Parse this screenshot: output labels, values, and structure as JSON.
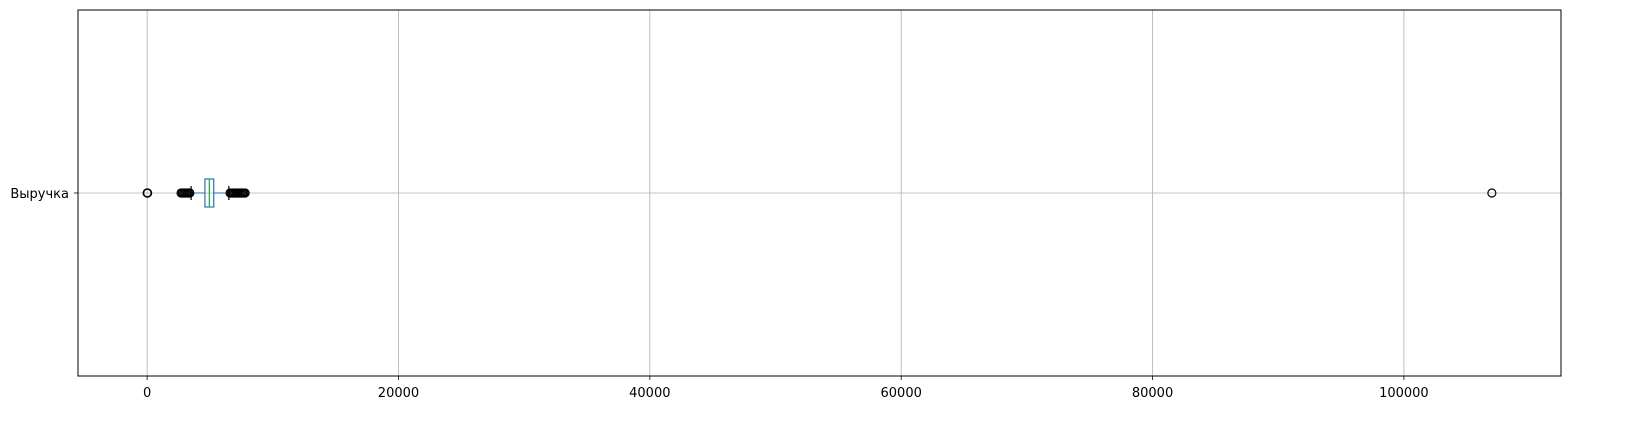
{
  "chart_data": {
    "type": "boxplot",
    "orientation": "horizontal",
    "title": "",
    "xlabel": "",
    "ylabel": "",
    "grid": true,
    "xlim": [
      -5500,
      112500
    ],
    "x_ticks": [
      0,
      20000,
      40000,
      60000,
      80000,
      100000
    ],
    "x_tick_labels": [
      "0",
      "20000",
      "40000",
      "60000",
      "80000",
      "100000"
    ],
    "categories": [
      "Выручка"
    ],
    "boxes": [
      {
        "category": "Выручка",
        "whisker_low": 3500,
        "q1": 4600,
        "median": 4950,
        "q3": 5300,
        "whisker_high": 6500,
        "outliers": [
          0,
          20,
          40,
          2700,
          2800,
          2900,
          3000,
          3100,
          3200,
          3300,
          3400,
          6600,
          6700,
          6800,
          6900,
          7000,
          7100,
          7200,
          7300,
          7400,
          7500,
          7600,
          7700,
          7800,
          107000
        ]
      }
    ],
    "colors": {
      "box": "#1f77b4",
      "median": "#2ca02c",
      "whisker": "#000000",
      "flier": "#000000",
      "grid": "#b0b0b0"
    }
  }
}
